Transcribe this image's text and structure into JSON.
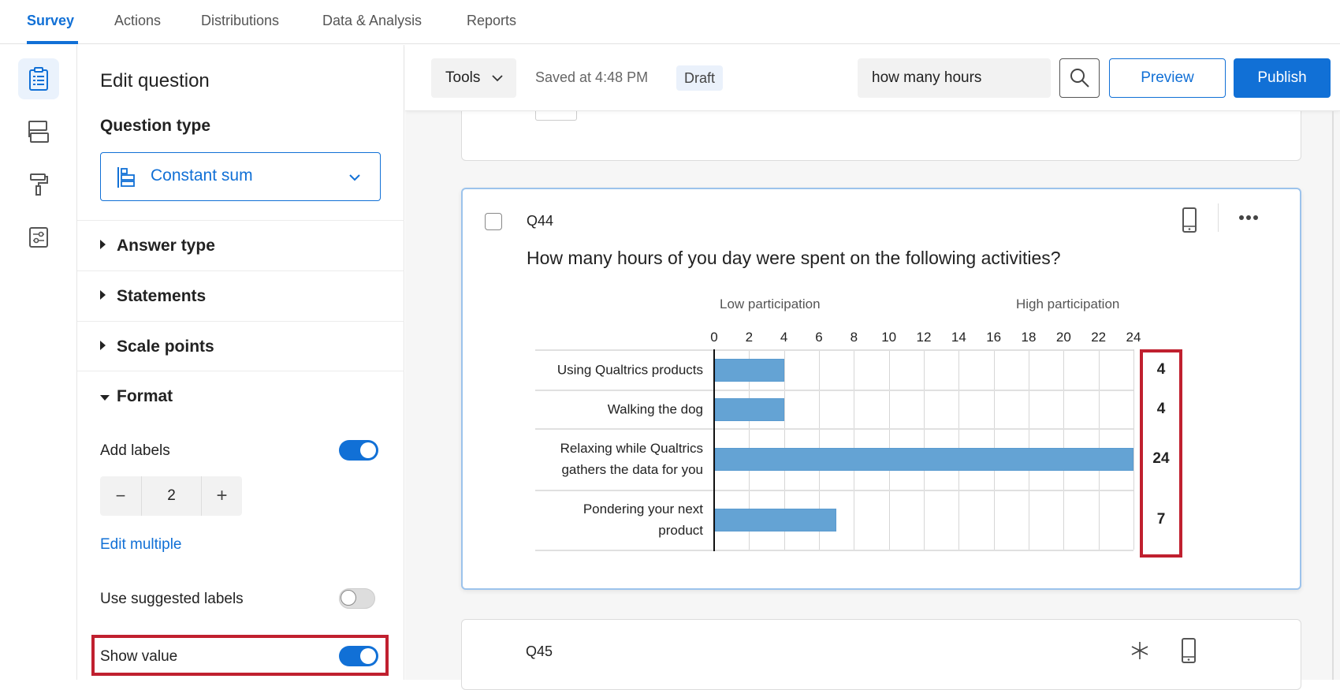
{
  "nav": {
    "tabs": [
      {
        "label": "Survey",
        "active": true
      },
      {
        "label": "Actions"
      },
      {
        "label": "Distributions"
      },
      {
        "label": "Data & Analysis"
      },
      {
        "label": "Reports"
      }
    ]
  },
  "rail": {
    "icons": [
      "survey-clipboard-icon",
      "survey-flow-icon",
      "look-and-feel-paint-roller-icon",
      "survey-options-icon"
    ]
  },
  "panel": {
    "title": "Edit question",
    "question_type_label": "Question type",
    "question_type_value": "Constant sum",
    "sections": [
      "Answer type",
      "Statements",
      "Scale points",
      "Format"
    ],
    "add_labels": {
      "label": "Add labels",
      "on": true
    },
    "stepper": {
      "minus": "−",
      "value": "2",
      "plus": "+"
    },
    "edit_multiple": "Edit multiple",
    "use_suggested": {
      "label": "Use suggested labels",
      "on": false
    },
    "show_value": {
      "label": "Show value",
      "on": true
    }
  },
  "toolbar": {
    "tools": "Tools",
    "saved": "Saved at 4:48 PM",
    "status": "Draft",
    "search_value": "how many hours",
    "preview": "Preview",
    "publish": "Publish"
  },
  "colors": {
    "accent": "#1170d6",
    "bar": "#64a3d4",
    "highlight": "#c0202f"
  },
  "q44": {
    "id": "Q44",
    "text": "How many hours of you day were spent on the following activities?",
    "chart_data": {
      "type": "bar",
      "orientation": "horizontal",
      "top_labels": [
        "Low participation",
        "High participation"
      ],
      "ticks": [
        "0",
        "2",
        "4",
        "6",
        "8",
        "10",
        "12",
        "14",
        "16",
        "18",
        "20",
        "22",
        "24"
      ],
      "xlim": [
        0,
        24
      ],
      "grid": true,
      "categories": [
        "Using Qualtrics products",
        "Walking the dog",
        "Relaxing while Qualtrics gathers the data for you",
        "Pondering your next product"
      ],
      "values": [
        4,
        4,
        24,
        7
      ],
      "value_labels": [
        "4",
        "4",
        "24",
        "7"
      ]
    }
  },
  "q45": {
    "id": "Q45"
  }
}
